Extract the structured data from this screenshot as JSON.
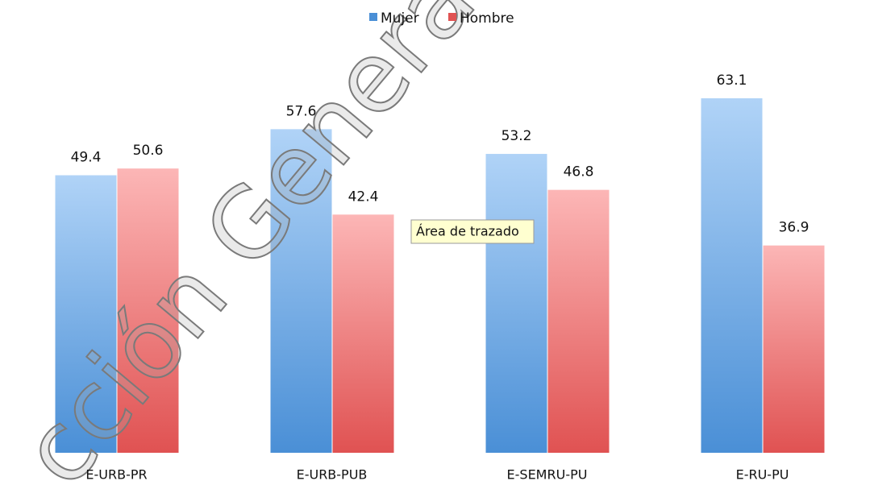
{
  "chart_data": {
    "type": "bar",
    "categories": [
      "E-URB-PR",
      "E-URB-PUB",
      "E-SEMRU-PU",
      "E-RU-PU"
    ],
    "series": [
      {
        "name": "Mujer",
        "color": "#4a8fd6",
        "values": [
          49.4,
          57.6,
          53.2,
          63.1
        ]
      },
      {
        "name": "Hombre",
        "color": "#e05252",
        "values": [
          50.6,
          42.4,
          46.8,
          36.9
        ]
      }
    ],
    "legend": "top",
    "tooltip": "Área de trazado",
    "watermark": "cción General de"
  }
}
